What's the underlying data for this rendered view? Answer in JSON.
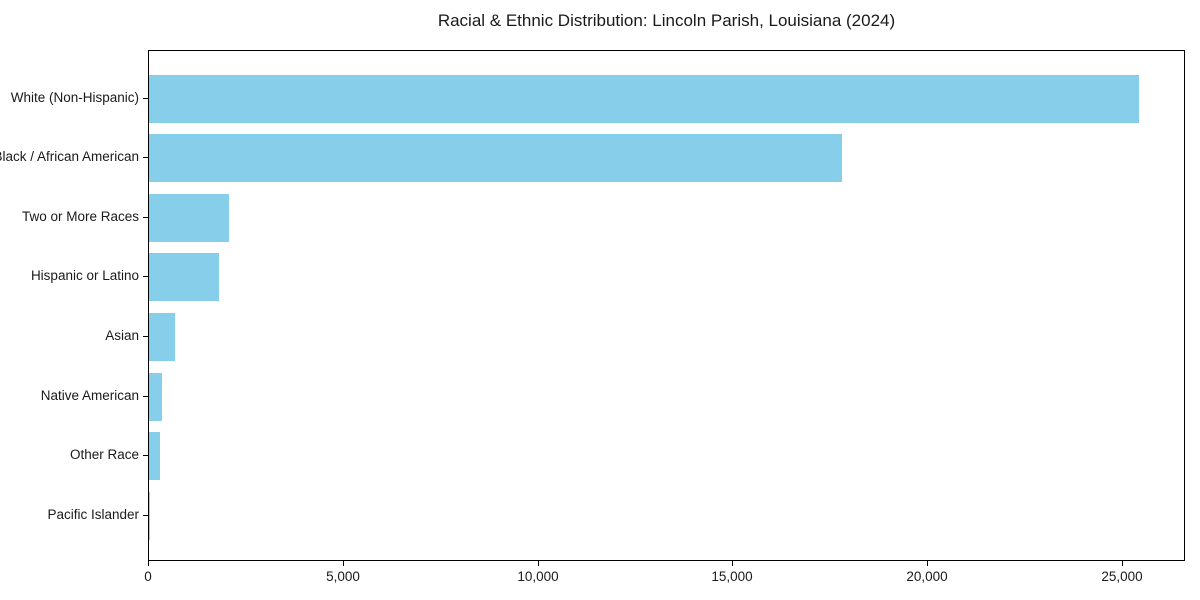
{
  "figure": {
    "background": "#ffffff",
    "text_color": "#1a1a1a",
    "border_color": "#000000"
  },
  "chart_data": {
    "type": "bar",
    "orientation": "horizontal",
    "title": "Racial & Ethnic Distribution: Lincoln Parish, Louisiana (2024)",
    "xlabel": "",
    "ylabel": "",
    "categories": [
      "White (Non-Hispanic)",
      "Black / African American",
      "Two or More Races",
      "Hispanic or Latino",
      "Asian",
      "Native American",
      "Other Race",
      "Pacific Islander"
    ],
    "values": [
      25400,
      17800,
      2050,
      1790,
      660,
      330,
      270,
      30
    ],
    "bar_color": "#87CEEB",
    "xlim": [
      0,
      26650
    ],
    "x_ticks": [
      0,
      5000,
      10000,
      15000,
      20000,
      25000
    ],
    "x_tick_labels": [
      "0",
      "5,000",
      "10,000",
      "15,000",
      "20,000",
      "25,000"
    ],
    "grid": false,
    "legend": null
  }
}
